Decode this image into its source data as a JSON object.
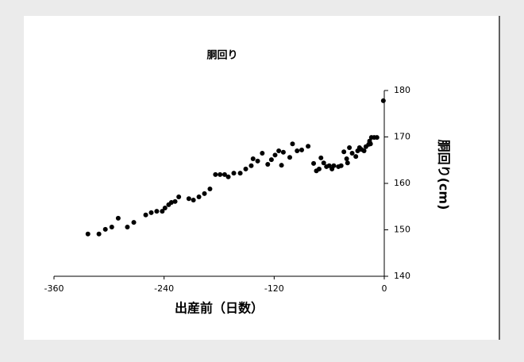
{
  "chart_data": {
    "type": "scatter",
    "title": "胴回り",
    "x_label": "出産前（日数）",
    "y_label": "胴回り(cm)",
    "color": "#000000",
    "y_axis_side": "right",
    "xlim": [
      -360,
      0
    ],
    "xticks": [
      -360,
      -240,
      -120,
      0
    ],
    "ylim": [
      140,
      180
    ],
    "yticks": [
      140,
      150,
      160,
      170,
      180
    ],
    "x": [
      -323,
      -311,
      -304,
      -297,
      -290,
      -280,
      -273,
      -260,
      -254,
      -248,
      -242,
      -239,
      -235,
      -232,
      -228,
      -224,
      -213,
      -208,
      -202,
      -196,
      -190,
      -184,
      -179,
      -174,
      -170,
      -164,
      -157,
      -151,
      -145,
      -143,
      -138,
      -133,
      -127,
      -123,
      -119,
      -115,
      -112,
      -110,
      -103,
      -100,
      -95,
      -90,
      -83,
      -77,
      -74,
      -71,
      -69,
      -66,
      -63,
      -60,
      -57,
      -55,
      -50,
      -47,
      -44,
      -41,
      -40,
      -38,
      -35,
      -31,
      -29,
      -27,
      -25,
      -22,
      -20,
      -17,
      -16,
      -15,
      -14,
      -11,
      -8,
      -1
    ],
    "values": [
      149.1,
      149.1,
      150.1,
      150.6,
      152.5,
      150.6,
      151.6,
      153.2,
      153.7,
      154.0,
      154.0,
      154.7,
      155.4,
      155.9,
      156.1,
      157.1,
      156.7,
      156.4,
      157.1,
      157.8,
      158.8,
      161.9,
      161.9,
      161.9,
      161.4,
      162.2,
      162.2,
      163.1,
      163.8,
      165.3,
      164.8,
      166.5,
      164.1,
      165.1,
      166.1,
      167.0,
      163.9,
      166.7,
      165.6,
      168.5,
      167.0,
      167.2,
      168.0,
      164.3,
      162.7,
      163.1,
      165.5,
      164.4,
      163.6,
      163.8,
      163.1,
      163.8,
      163.6,
      163.8,
      166.8,
      165.3,
      164.4,
      167.7,
      166.5,
      165.8,
      167.0,
      167.7,
      167.3,
      167.0,
      167.9,
      168.4,
      169.1,
      168.5,
      169.9,
      169.9,
      169.9,
      177.8
    ]
  }
}
